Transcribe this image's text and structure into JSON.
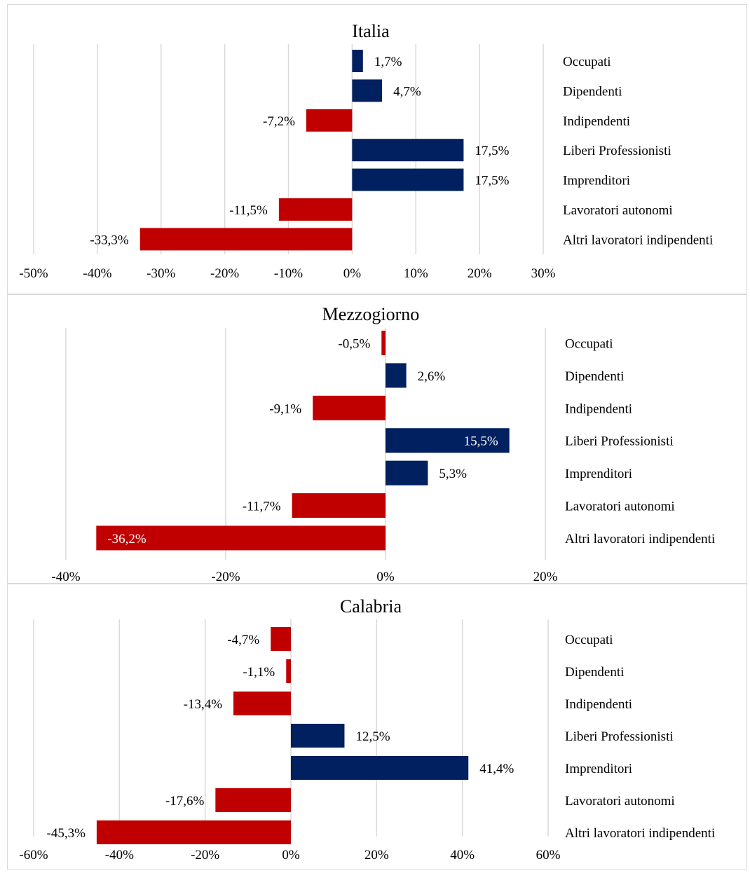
{
  "colors": {
    "positive": "#002060",
    "negative": "#c00000",
    "grid": "#d9d9d9"
  },
  "chart_data": [
    {
      "type": "bar",
      "orientation": "horizontal",
      "title": "Italia",
      "categories": [
        "Occupati",
        "Dipendenti",
        "Indipendenti",
        "Liberi Professionisti",
        "Imprenditori",
        "Lavoratori autonomi",
        "Altri lavoratori indipendenti"
      ],
      "values": [
        1.7,
        4.7,
        -7.2,
        17.5,
        17.5,
        -11.5,
        -33.3
      ],
      "value_labels": [
        "1,7%",
        "4,7%",
        "-7,2%",
        "17,5%",
        "17,5%",
        "-11,5%",
        "-33,3%"
      ],
      "xlim": [
        -50,
        30
      ],
      "xticks": [
        -50,
        -40,
        -30,
        -20,
        -10,
        0,
        10,
        20,
        30
      ],
      "xtick_labels": [
        "-50%",
        "-40%",
        "-30%",
        "-20%",
        "-10%",
        "0%",
        "10%",
        "20%",
        "30%"
      ],
      "grid": true
    },
    {
      "type": "bar",
      "orientation": "horizontal",
      "title": "Mezzogiorno",
      "categories": [
        "Occupati",
        "Dipendenti",
        "Indipendenti",
        "Liberi Professionisti",
        "Imprenditori",
        "Lavoratori autonomi",
        "Altri lavoratori indipendenti"
      ],
      "values": [
        -0.5,
        2.6,
        -9.1,
        15.5,
        5.3,
        -11.7,
        -36.2
      ],
      "value_labels": [
        "-0,5%",
        "2,6%",
        "-9,1%",
        "15,5%",
        "5,3%",
        "-11,7%",
        "-36,2%"
      ],
      "xlim": [
        -40,
        20
      ],
      "xticks": [
        -40,
        -20,
        0,
        20
      ],
      "xtick_labels": [
        "-40%",
        "-20%",
        "0%",
        "20%"
      ],
      "grid": true
    },
    {
      "type": "bar",
      "orientation": "horizontal",
      "title": "Calabria",
      "categories": [
        "Occupati",
        "Dipendenti",
        "Indipendenti",
        "Liberi Professionisti",
        "Imprenditori",
        "Lavoratori autonomi",
        "Altri lavoratori indipendenti"
      ],
      "values": [
        -4.7,
        -1.1,
        -13.4,
        12.5,
        41.4,
        -17.6,
        -45.3
      ],
      "value_labels": [
        "-4,7%",
        "-1,1%",
        "-13,4%",
        "12,5%",
        "41,4%",
        "-17,6%",
        "-45,3%"
      ],
      "xlim": [
        -60,
        60
      ],
      "xticks": [
        -60,
        -40,
        -20,
        0,
        20,
        40,
        60
      ],
      "xtick_labels": [
        "-60%",
        "-40%",
        "-20%",
        "0%",
        "20%",
        "40%",
        "60%"
      ],
      "grid": true
    }
  ]
}
